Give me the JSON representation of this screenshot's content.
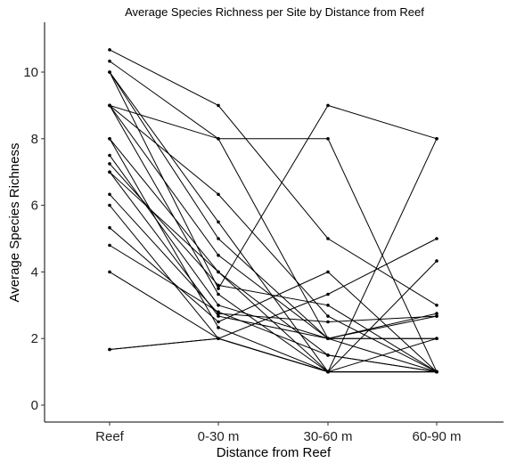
{
  "chart_data": {
    "type": "line",
    "title": "Average Species Richness per Site by Distance from Reef",
    "xlabel": "Distance from Reef",
    "ylabel": "Average Species Richness",
    "categories": [
      "Reef",
      "0-30 m",
      "30-60 m",
      "60-90 m"
    ],
    "ylim": [
      -0.5,
      11.5
    ],
    "yticks": [
      0,
      2,
      4,
      6,
      8,
      10
    ],
    "grid": false,
    "legend": "none",
    "series": [
      {
        "values": [
          10.67,
          9,
          5,
          3
        ]
      },
      {
        "values": [
          10.33,
          8,
          2,
          2.67
        ]
      },
      {
        "values": [
          10,
          5.5,
          1,
          8
        ]
      },
      {
        "values": [
          10,
          5,
          2,
          2
        ]
      },
      {
        "values": [
          10,
          3.5,
          9,
          8
        ]
      },
      {
        "values": [
          9,
          8,
          8,
          1
        ]
      },
      {
        "values": [
          9,
          6.33,
          2.67,
          1
        ]
      },
      {
        "values": [
          9,
          4.5,
          2,
          1
        ]
      },
      {
        "values": [
          9,
          3.33,
          1,
          1
        ]
      },
      {
        "values": [
          8,
          4,
          1.5,
          1
        ]
      },
      {
        "values": [
          8,
          2.33,
          1,
          1
        ]
      },
      {
        "values": [
          7.5,
          3,
          2,
          2.75
        ]
      },
      {
        "values": [
          7.25,
          3.6,
          3,
          1
        ]
      },
      {
        "values": [
          7,
          4,
          1,
          2
        ]
      },
      {
        "values": [
          7,
          2.67,
          2,
          2
        ]
      },
      {
        "values": [
          6.33,
          2.75,
          2.5,
          2.67
        ]
      },
      {
        "values": [
          6,
          2,
          1,
          1
        ]
      },
      {
        "values": [
          5.33,
          2.5,
          4,
          1
        ]
      },
      {
        "values": [
          4.8,
          2.8,
          1.5,
          1
        ]
      },
      {
        "values": [
          4,
          2,
          1,
          1
        ]
      },
      {
        "values": [
          1.67,
          2,
          3.33,
          5
        ]
      },
      {
        "values": [
          1.67,
          2,
          1,
          4.33
        ]
      }
    ]
  }
}
